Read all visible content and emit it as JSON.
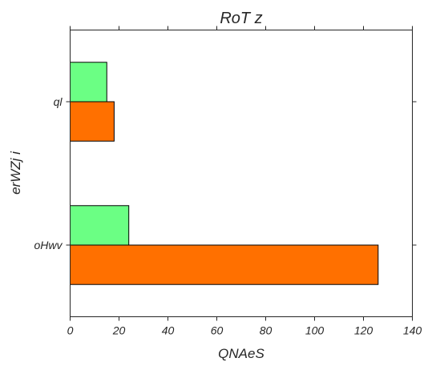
{
  "chart_data": {
    "type": "bar",
    "orientation": "horizontal",
    "title": "RoT z",
    "xlabel": "QNAeS",
    "ylabel": "erWZj i",
    "categories": [
      "oHwv",
      "ql"
    ],
    "series": [
      {
        "values": [
          126,
          18
        ],
        "color": "#ff7000"
      },
      {
        "values": [
          24,
          15
        ],
        "color": "#6bff84"
      }
    ],
    "xlim": [
      0,
      140
    ],
    "xticks": [
      0,
      20,
      40,
      60,
      80,
      100,
      120,
      140
    ],
    "grid": false,
    "legend": "none"
  }
}
